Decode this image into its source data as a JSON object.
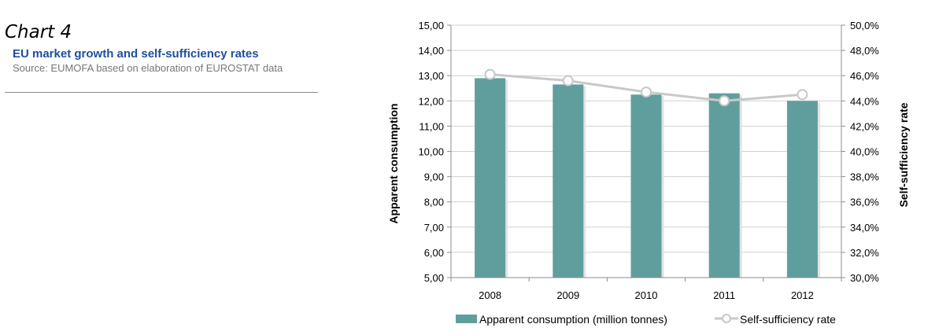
{
  "header": {
    "chart_number": "Chart 4",
    "title": "EU market growth and self-sufficiency rates",
    "source": "Source: EUMOFA based on elaboration of EUROSTAT data"
  },
  "colors": {
    "bar": "#609e9d",
    "line": "#c8c8c8",
    "title_blue": "#1f4e9c"
  },
  "chart_data": {
    "type": "bar",
    "categories": [
      "2008",
      "2009",
      "2010",
      "2011",
      "2012"
    ],
    "series": [
      {
        "name": "Apparent consumption (million tonnes)",
        "type": "bar",
        "axis": "left",
        "values": [
          12.9,
          12.65,
          12.25,
          12.3,
          12.0
        ]
      },
      {
        "name": "Self-sufficiency rate",
        "type": "line",
        "axis": "right",
        "values": [
          46.1,
          45.6,
          44.7,
          44.0,
          44.5
        ]
      }
    ],
    "ylabel": "Apparent consumption",
    "y2label": "Self-sufficiency rate",
    "ylim": [
      5,
      15
    ],
    "y2lim": [
      30,
      50
    ],
    "yticks": [
      "5,00",
      "6,00",
      "7,00",
      "8,00",
      "9,00",
      "10,00",
      "11,00",
      "12,00",
      "13,00",
      "14,00",
      "15,00"
    ],
    "y2ticks": [
      "30,0%",
      "32,0%",
      "34,0%",
      "36,0%",
      "38,0%",
      "40,0%",
      "42,0%",
      "44,0%",
      "46,0%",
      "48,0%",
      "50,0%"
    ],
    "grid": true,
    "legend_position": "bottom"
  }
}
